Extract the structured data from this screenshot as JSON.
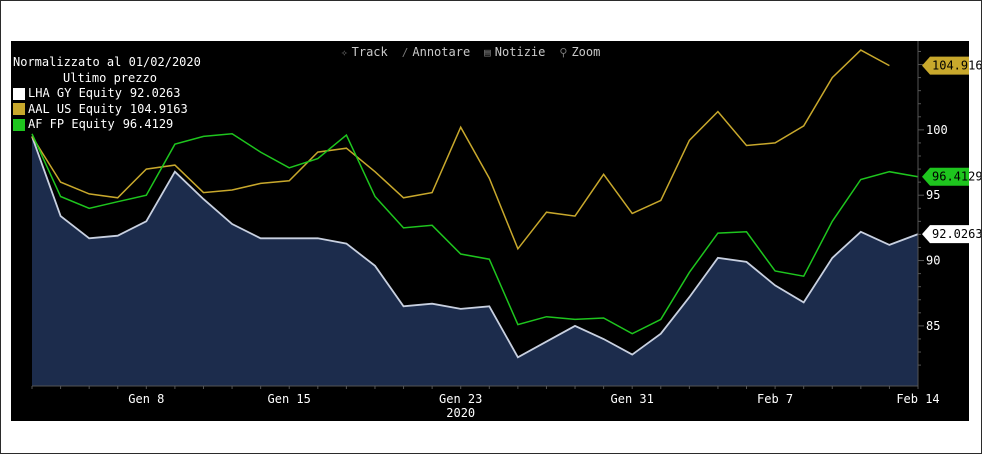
{
  "toolbar": {
    "items": [
      {
        "label": "Track",
        "icon": "crosshair-icon",
        "glyph": "✧"
      },
      {
        "label": "Annotare",
        "icon": "pencil-icon",
        "glyph": "∕"
      },
      {
        "label": "Notizie",
        "icon": "news-icon",
        "glyph": "▤"
      },
      {
        "label": "Zoom",
        "icon": "magnifier-icon",
        "glyph": "⚲"
      }
    ]
  },
  "legend": {
    "title": "Normalizzato al 01/02/2020",
    "subtitle": "Ultimo prezzo"
  },
  "colors": {
    "background": "#000000",
    "LHA": "#ffffff",
    "AAL": "#c8a82c",
    "AF": "#1ec51e",
    "area_fill": "#1c2c4c",
    "area_line": "#c8d0e0",
    "axis": "#555555"
  },
  "chart_data": {
    "type": "line",
    "title": "",
    "xlabel": "2020",
    "ylabel": "",
    "ylim": [
      80.4,
      106.8
    ],
    "y_ticks": [
      85,
      90,
      95,
      100
    ],
    "x_tick_labels": [
      {
        "label": "Gen 8",
        "index": 4
      },
      {
        "label": "Gen 15",
        "index": 9
      },
      {
        "label": "Gen 23",
        "index": 15
      },
      {
        "label": "Gen 31",
        "index": 21
      },
      {
        "label": "Feb 7",
        "index": 26
      },
      {
        "label": "Feb 14",
        "index": 31
      }
    ],
    "year_label": "2020",
    "grid": false,
    "legend_position": "top-left",
    "x": [
      "Gen 2",
      "Gen 3",
      "Gen 6",
      "Gen 7",
      "Gen 8",
      "Gen 9",
      "Gen 10",
      "Gen 13",
      "Gen 14",
      "Gen 15",
      "Gen 16",
      "Gen 17",
      "Gen 20",
      "Gen 21",
      "Gen 22",
      "Gen 23",
      "Gen 24",
      "Gen 27",
      "Gen 28",
      "Gen 29",
      "Gen 30",
      "Gen 31",
      "Feb 3",
      "Feb 4",
      "Feb 5",
      "Feb 6",
      "Feb 7",
      "Feb 10",
      "Feb 11",
      "Feb 12",
      "Feb 13",
      "Feb 14"
    ],
    "series": [
      {
        "name": "LHA GY Equity",
        "key": "LHA",
        "last": "92.0263",
        "label": "92.0263",
        "style": "area",
        "values": [
          99.5,
          93.4,
          91.7,
          91.9,
          93.0,
          96.8,
          94.7,
          92.8,
          91.7,
          91.7,
          91.7,
          91.3,
          89.6,
          86.5,
          86.7,
          86.3,
          86.5,
          82.6,
          83.8,
          85.0,
          84.0,
          82.8,
          84.4,
          87.2,
          90.2,
          89.9,
          88.1,
          86.8,
          90.2,
          92.2,
          91.2,
          92.0263
        ]
      },
      {
        "name": "AAL US Equity",
        "key": "AAL",
        "last": "104.9163",
        "label": "104.916",
        "style": "line",
        "values": [
          99.5,
          96.0,
          95.1,
          94.8,
          97.0,
          97.3,
          95.2,
          95.4,
          95.9,
          96.1,
          98.3,
          98.6,
          96.8,
          94.8,
          95.2,
          100.2,
          96.3,
          90.9,
          93.7,
          93.4,
          96.6,
          93.6,
          94.6,
          99.2,
          101.4,
          98.8,
          99.0,
          100.3,
          104.0,
          106.1,
          104.9163,
          null
        ]
      },
      {
        "name": "AF FP Equity",
        "key": "AF",
        "last": "96.4129",
        "label": "96.4129",
        "style": "line",
        "values": [
          99.7,
          94.9,
          94.0,
          94.5,
          95.0,
          98.9,
          99.5,
          99.7,
          98.3,
          97.1,
          97.8,
          99.6,
          94.9,
          92.5,
          92.7,
          90.5,
          90.1,
          85.1,
          85.7,
          85.5,
          85.6,
          84.4,
          85.5,
          89.1,
          92.1,
          92.2,
          89.2,
          88.8,
          93.0,
          96.2,
          96.8,
          96.4129
        ]
      }
    ]
  }
}
